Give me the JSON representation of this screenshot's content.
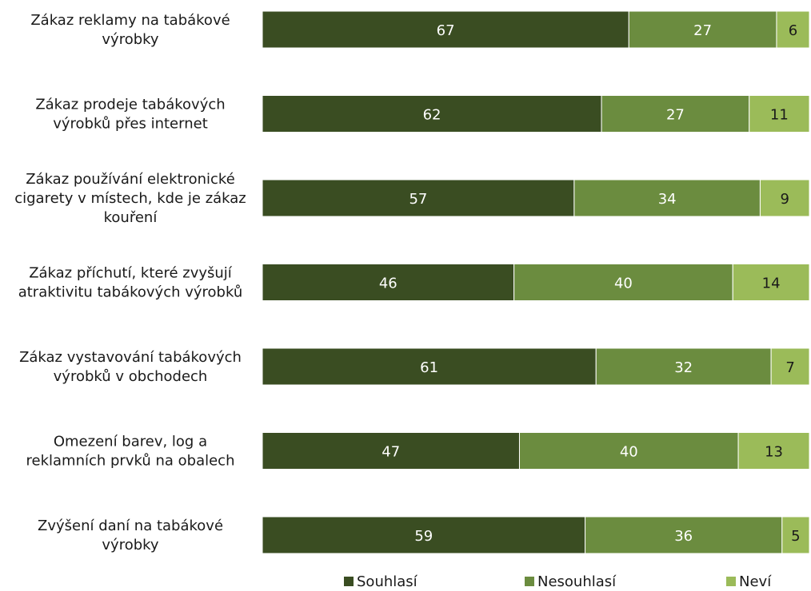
{
  "chart_data": {
    "type": "bar",
    "orientation": "horizontal",
    "stacked": true,
    "categories": [
      [
        "Zákaz reklamy na tabákové",
        "výrobky"
      ],
      [
        "Zákaz prodeje tabákových",
        "výrobků přes internet"
      ],
      [
        "Zákaz používání elektronické",
        "cigarety v místech, kde je zákaz",
        "kouření"
      ],
      [
        "Zákaz příchutí, které zvyšují",
        "atraktivitu tabákových výrobků"
      ],
      [
        "Zákaz vystavování tabákových",
        "výrobků v obchodech"
      ],
      [
        "Omezení barev, log a",
        "reklamních prvků na obalech"
      ],
      [
        "Zvýšení daní na tabákové",
        "výrobky"
      ]
    ],
    "series": [
      {
        "name": "Souhlasí",
        "color": "#3a4d22",
        "values": [
          67,
          62,
          57,
          46,
          61,
          47,
          59
        ]
      },
      {
        "name": "Nesouhlasí",
        "color": "#6b8c3f",
        "values": [
          27,
          27,
          34,
          40,
          32,
          40,
          36
        ]
      },
      {
        "name": "Neví",
        "color": "#9bbb59",
        "values": [
          6,
          11,
          9,
          14,
          7,
          13,
          5
        ]
      }
    ],
    "xlim": [
      0,
      100
    ],
    "legend_position": "bottom",
    "grid": false
  }
}
